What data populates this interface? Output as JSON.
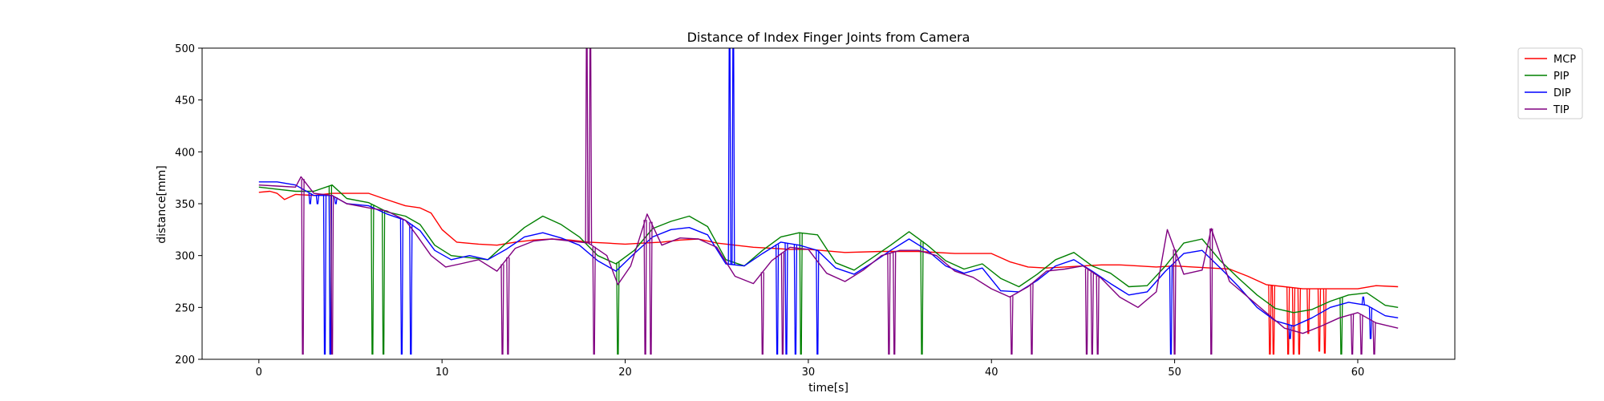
{
  "chart_data": {
    "type": "line",
    "title": "Distance of Index Finger Joints from Camera",
    "xlabel": "time[s]",
    "ylabel": "distance[mm]",
    "xlim": [
      -3.1,
      65.3
    ],
    "ylim": [
      200,
      500
    ],
    "xticks": [
      0,
      10,
      20,
      30,
      40,
      50,
      60
    ],
    "yticks": [
      200,
      250,
      300,
      350,
      400,
      450,
      500
    ],
    "grid": false,
    "legend_position": "outside-top-right",
    "series": [
      {
        "name": "MCP",
        "color": "#ff0000",
        "x": [
          0,
          0.6,
          1,
          1.4,
          2,
          3,
          4,
          5,
          6,
          6.8,
          8,
          8.8,
          9.4,
          10,
          10.8,
          12,
          13,
          14,
          15,
          16,
          17,
          18,
          19,
          20,
          21,
          22,
          23,
          24,
          25,
          26,
          27,
          28,
          29,
          30,
          32,
          34,
          36,
          38,
          40,
          41,
          42,
          43,
          44,
          45,
          46,
          47,
          48,
          49,
          50,
          51,
          52,
          53,
          54,
          55,
          56,
          57,
          58,
          59,
          60,
          61,
          62.2
        ],
        "y": [
          361,
          362,
          360,
          354,
          359,
          358,
          360,
          360,
          360,
          355,
          348,
          346,
          341,
          325,
          313,
          311,
          310,
          313,
          315,
          316,
          315,
          313,
          312,
          311,
          312,
          313,
          315,
          316,
          312,
          310,
          308,
          307,
          306,
          306,
          303,
          304,
          304,
          302,
          302,
          294,
          289,
          288,
          289,
          290,
          291,
          291,
          290,
          289,
          290,
          289,
          288,
          287,
          280,
          272,
          270,
          268,
          268,
          268,
          268,
          271,
          270
        ],
        "spikes": [
          [
            55.2,
            205
          ],
          [
            55.4,
            205
          ],
          [
            56.2,
            205
          ],
          [
            56.5,
            205
          ],
          [
            56.8,
            205
          ],
          [
            57.3,
            225
          ],
          [
            57.9,
            208
          ],
          [
            58.2,
            206
          ]
        ]
      },
      {
        "name": "PIP",
        "color": "#008000",
        "x": [
          0,
          1,
          2,
          3,
          4,
          4.8,
          6,
          7,
          8,
          8.8,
          9.6,
          10.5,
          11.5,
          12.5,
          13.5,
          14.5,
          15.5,
          16.5,
          17.5,
          18.5,
          19.5,
          20.5,
          21.5,
          22.5,
          23.5,
          24.5,
          25.5,
          26.5,
          27.5,
          28.5,
          29.5,
          30.5,
          31.5,
          32.5,
          33.5,
          34.5,
          35.5,
          36.5,
          37.5,
          38.5,
          39.5,
          40.5,
          41.5,
          42.5,
          43.5,
          44.5,
          45.5,
          46.5,
          47.5,
          48.5,
          49.5,
          50.5,
          51.5,
          52.5,
          53.5,
          54.5,
          55.5,
          56.5,
          57.5,
          58.5,
          59.5,
          60.5,
          61.5,
          62.2
        ],
        "y": [
          366,
          364,
          362,
          362,
          368,
          355,
          351,
          342,
          338,
          330,
          310,
          300,
          298,
          296,
          312,
          327,
          338,
          330,
          318,
          300,
          292,
          305,
          326,
          333,
          338,
          328,
          296,
          290,
          305,
          318,
          322,
          320,
          293,
          286,
          298,
          310,
          323,
          310,
          295,
          287,
          292,
          278,
          270,
          282,
          296,
          303,
          290,
          283,
          270,
          271,
          290,
          312,
          316,
          295,
          278,
          262,
          249,
          245,
          248,
          256,
          262,
          264,
          252,
          250
        ],
        "spikes": [
          [
            3.9,
            205
          ],
          [
            6.2,
            205
          ],
          [
            6.8,
            205
          ],
          [
            19.6,
            205
          ],
          [
            29.6,
            205
          ],
          [
            36.2,
            205
          ],
          [
            59.1,
            205
          ]
        ]
      },
      {
        "name": "DIP",
        "color": "#0000ff",
        "x": [
          0,
          1,
          2,
          3,
          4,
          4.8,
          6,
          7,
          8,
          8.8,
          9.6,
          10.5,
          11.5,
          12.5,
          13.5,
          14.5,
          15.5,
          16.5,
          17.5,
          18.5,
          19.5,
          20.5,
          21.5,
          22.5,
          23.5,
          24.5,
          25.5,
          26.5,
          27.5,
          28.5,
          29.5,
          30.5,
          31.5,
          32.5,
          33.5,
          34.5,
          35.5,
          36.5,
          37.5,
          38.5,
          39.5,
          40.5,
          41.5,
          42.5,
          43.5,
          44.5,
          45.5,
          46.5,
          47.5,
          48.5,
          49.5,
          50.5,
          51.5,
          52.5,
          53.5,
          54.5,
          55.5,
          56.5,
          57.5,
          58.5,
          59.5,
          60.5,
          61.5,
          62.2
        ],
        "y": [
          371,
          371,
          368,
          358,
          358,
          350,
          348,
          340,
          334,
          324,
          305,
          296,
          300,
          296,
          306,
          318,
          322,
          317,
          310,
          295,
          285,
          302,
          318,
          325,
          327,
          320,
          292,
          290,
          302,
          313,
          310,
          305,
          288,
          282,
          293,
          305,
          316,
          305,
          290,
          283,
          288,
          266,
          265,
          276,
          290,
          296,
          285,
          273,
          262,
          265,
          285,
          302,
          305,
          288,
          270,
          250,
          237,
          232,
          240,
          250,
          255,
          252,
          242,
          240
        ],
        "spikes": [
          [
            2.8,
            350
          ],
          [
            3.2,
            350
          ],
          [
            3.6,
            205
          ],
          [
            3.9,
            205
          ],
          [
            4.2,
            350
          ],
          [
            7.8,
            205
          ],
          [
            8.3,
            205
          ],
          [
            25.7,
            500
          ],
          [
            25.9,
            500
          ],
          [
            28.3,
            205
          ],
          [
            28.8,
            205
          ],
          [
            29.3,
            205
          ],
          [
            30.5,
            205
          ],
          [
            49.8,
            205
          ],
          [
            56.3,
            220
          ],
          [
            60.3,
            260
          ],
          [
            60.7,
            220
          ]
        ]
      },
      {
        "name": "TIP",
        "color": "#800080",
        "x": [
          0,
          1,
          2,
          2.3,
          3,
          4,
          4.8,
          6,
          7,
          8,
          8.6,
          9.4,
          10.2,
          11,
          12,
          13,
          14,
          15,
          16,
          17,
          18,
          19,
          19.6,
          20.3,
          21.2,
          22,
          23,
          24,
          25,
          26,
          27,
          28,
          29,
          30,
          31,
          32,
          33,
          34,
          35,
          36,
          37,
          38,
          39,
          40,
          41,
          42,
          43,
          44,
          45,
          46,
          47,
          48,
          49,
          49.6,
          50.5,
          51.5,
          52,
          53,
          54,
          55,
          56,
          57,
          58,
          59,
          60,
          61,
          62.2
        ],
        "y": [
          368,
          367,
          366,
          376,
          360,
          358,
          350,
          346,
          343,
          334,
          320,
          300,
          289,
          292,
          296,
          285,
          307,
          314,
          316,
          314,
          312,
          300,
          272,
          290,
          340,
          310,
          317,
          316,
          308,
          280,
          273,
          295,
          308,
          306,
          283,
          275,
          286,
          300,
          305,
          305,
          300,
          285,
          279,
          268,
          260,
          270,
          285,
          287,
          290,
          278,
          260,
          250,
          265,
          325,
          282,
          286,
          326,
          275,
          260,
          245,
          230,
          225,
          232,
          240,
          245,
          235,
          230
        ],
        "spikes": [
          [
            2.4,
            205
          ],
          [
            4.0,
            205
          ],
          [
            13.3,
            205
          ],
          [
            13.6,
            205
          ],
          [
            17.9,
            500
          ],
          [
            18.1,
            500
          ],
          [
            18.3,
            205
          ],
          [
            21.1,
            205
          ],
          [
            21.4,
            205
          ],
          [
            27.5,
            205
          ],
          [
            28.6,
            205
          ],
          [
            34.4,
            205
          ],
          [
            34.7,
            205
          ],
          [
            41.1,
            205
          ],
          [
            42.2,
            205
          ],
          [
            45.2,
            205
          ],
          [
            45.5,
            205
          ],
          [
            45.8,
            205
          ],
          [
            50.0,
            205
          ],
          [
            52.0,
            205
          ],
          [
            59.7,
            205
          ],
          [
            60.2,
            205
          ],
          [
            60.9,
            205
          ]
        ]
      }
    ]
  }
}
